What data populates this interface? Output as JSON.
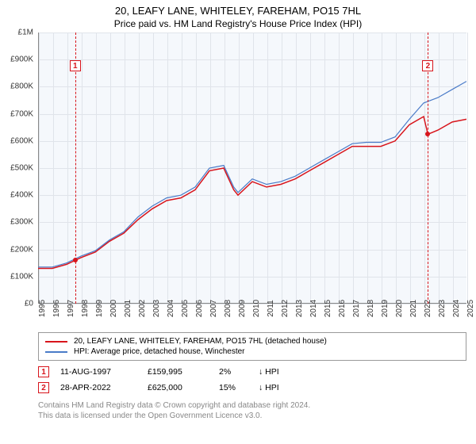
{
  "title": "20, LEAFY LANE, WHITELEY, FAREHAM, PO15 7HL",
  "subtitle": "Price paid vs. HM Land Registry's House Price Index (HPI)",
  "chart": {
    "type": "line",
    "background_color": "#f5f8fc",
    "grid_color": "#e0e4ea",
    "axis_color": "#888888",
    "ylim": [
      0,
      1000000
    ],
    "ytick_step": 100000,
    "ytick_labels": [
      "£0",
      "£100K",
      "£200K",
      "£300K",
      "£400K",
      "£500K",
      "£600K",
      "£700K",
      "£800K",
      "£900K",
      "£1M"
    ],
    "label_fontsize": 10,
    "xlim": [
      1995,
      2025
    ],
    "xtick_step": 1,
    "xtick_labels": [
      "1995",
      "1996",
      "1997",
      "1998",
      "1999",
      "2000",
      "2001",
      "2002",
      "2003",
      "2004",
      "2005",
      "2006",
      "2007",
      "2008",
      "2009",
      "2010",
      "2011",
      "2012",
      "2013",
      "2014",
      "2015",
      "2016",
      "2017",
      "2018",
      "2019",
      "2020",
      "2021",
      "2022",
      "2023",
      "2024",
      "2025"
    ],
    "series": [
      {
        "name": "20, LEAFY LANE, WHITELEY, FAREHAM, PO15 7HL (detached house)",
        "color": "#d8151c",
        "line_width": 1.5,
        "x": [
          1995,
          1996,
          1997,
          1997.6,
          1998,
          1999,
          2000,
          2001,
          2002,
          2003,
          2004,
          2005,
          2006,
          2007,
          2008,
          2008.7,
          2009,
          2010,
          2011,
          2012,
          2013,
          2014,
          2015,
          2016,
          2017,
          2018,
          2019,
          2020,
          2021,
          2022,
          2022.3,
          2023,
          2024,
          2025
        ],
        "y": [
          130000,
          130000,
          145000,
          159995,
          170000,
          190000,
          230000,
          260000,
          310000,
          350000,
          380000,
          390000,
          420000,
          490000,
          500000,
          420000,
          400000,
          450000,
          430000,
          440000,
          460000,
          490000,
          520000,
          550000,
          580000,
          580000,
          580000,
          600000,
          660000,
          690000,
          625000,
          640000,
          670000,
          680000
        ]
      },
      {
        "name": "HPI: Average price, detached house, Winchester",
        "color": "#4a7bc8",
        "line_width": 1.2,
        "x": [
          1995,
          1996,
          1997,
          1998,
          1999,
          2000,
          2001,
          2002,
          2003,
          2004,
          2005,
          2006,
          2007,
          2008,
          2008.7,
          2009,
          2010,
          2011,
          2012,
          2013,
          2014,
          2015,
          2016,
          2017,
          2018,
          2019,
          2020,
          2021,
          2022,
          2023,
          2024,
          2025
        ],
        "y": [
          135000,
          135000,
          150000,
          175000,
          195000,
          235000,
          265000,
          320000,
          360000,
          390000,
          400000,
          430000,
          500000,
          510000,
          430000,
          410000,
          460000,
          440000,
          450000,
          470000,
          500000,
          530000,
          560000,
          590000,
          595000,
          595000,
          615000,
          680000,
          740000,
          760000,
          790000,
          820000
        ]
      }
    ],
    "markers": [
      {
        "id": "1",
        "x": 1997.6,
        "y": 159995,
        "color": "#d8151c",
        "box_top": 35
      },
      {
        "id": "2",
        "x": 2022.3,
        "y": 625000,
        "color": "#d8151c",
        "box_top": 35
      }
    ]
  },
  "legend": {
    "items": [
      {
        "label": "20, LEAFY LANE, WHITELEY, FAREHAM, PO15 7HL (detached house)",
        "color": "#d8151c"
      },
      {
        "label": "HPI: Average price, detached house, Winchester",
        "color": "#4a7bc8"
      }
    ]
  },
  "events": [
    {
      "id": "1",
      "color": "#d8151c",
      "date": "11-AUG-1997",
      "price": "£159,995",
      "pct": "2%",
      "direction": "↓ HPI"
    },
    {
      "id": "2",
      "color": "#d8151c",
      "date": "28-APR-2022",
      "price": "£625,000",
      "pct": "15%",
      "direction": "↓ HPI"
    }
  ],
  "footer": {
    "line1": "Contains HM Land Registry data © Crown copyright and database right 2024.",
    "line2": "This data is licensed under the Open Government Licence v3.0."
  }
}
